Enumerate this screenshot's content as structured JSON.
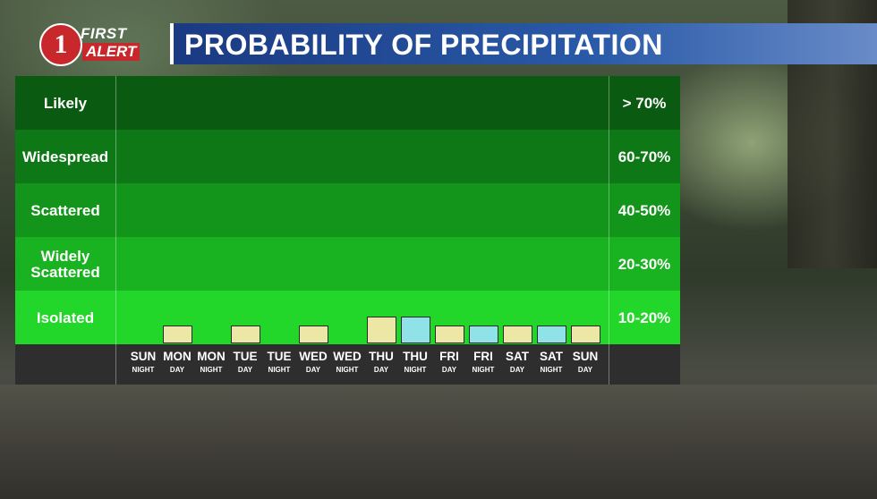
{
  "header": {
    "logo_top": "FIRST",
    "logo_bottom": "ALERT",
    "logo_number": "1",
    "title": "PROBABILITY OF PRECIPITATION"
  },
  "chart_data": {
    "type": "bar",
    "title": "PROBABILITY OF PRECIPITATION",
    "bands": [
      {
        "label": "Likely",
        "label2": "",
        "range": "> 70%",
        "color": "#0b5a12"
      },
      {
        "label": "Widespread",
        "label2": "",
        "range": "60-70%",
        "color": "#0e7816"
      },
      {
        "label": "Scattered",
        "label2": "",
        "range": "40-50%",
        "color": "#13951b"
      },
      {
        "label": "Widely",
        "label2": "Scattered",
        "range": "20-30%",
        "color": "#19b221"
      },
      {
        "label": "Isolated",
        "label2": "",
        "range": "10-20%",
        "color": "#22d62a"
      }
    ],
    "categories": [
      {
        "main": "SUN",
        "sub": "NIGHT"
      },
      {
        "main": "MON",
        "sub": "DAY"
      },
      {
        "main": "MON",
        "sub": "NIGHT"
      },
      {
        "main": "TUE",
        "sub": "DAY"
      },
      {
        "main": "TUE",
        "sub": "NIGHT"
      },
      {
        "main": "WED",
        "sub": "DAY"
      },
      {
        "main": "WED",
        "sub": "NIGHT"
      },
      {
        "main": "THU",
        "sub": "DAY"
      },
      {
        "main": "THU",
        "sub": "NIGHT"
      },
      {
        "main": "FRI",
        "sub": "DAY"
      },
      {
        "main": "FRI",
        "sub": "NIGHT"
      },
      {
        "main": "SAT",
        "sub": "DAY"
      },
      {
        "main": "SAT",
        "sub": "NIGHT"
      },
      {
        "main": "SUN",
        "sub": "DAY"
      }
    ],
    "values": [
      0,
      10,
      0,
      10,
      0,
      10,
      0,
      20,
      20,
      10,
      10,
      10,
      10,
      10
    ],
    "colors": {
      "day": "#ede7a6",
      "night": "#8fe3e8"
    },
    "ylim": [
      0,
      100
    ]
  }
}
